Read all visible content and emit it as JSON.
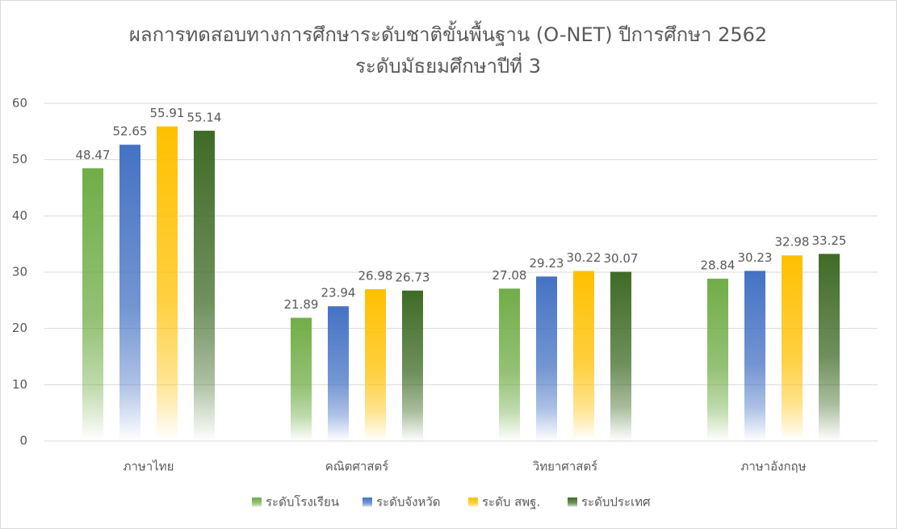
{
  "chart_data": {
    "type": "bar",
    "title": "ผลการทดสอบทางการศึกษาระดับชาติขั้นพื้นฐาน (O-NET) ปีการศึกษา 2562",
    "subtitle": "ระดับมัธยมศึกษาปีที่ 3",
    "categories": [
      "ภาษาไทย",
      "คณิตศาสตร์",
      "วิทยาศาสตร์",
      "ภาษาอังกฤษ"
    ],
    "series": [
      {
        "name": "ระดับโรงเรียน",
        "color": "#70ad47",
        "values": [
          48.47,
          21.89,
          27.08,
          28.84
        ]
      },
      {
        "name": "ระดับจังหวัด",
        "color": "#4472c4",
        "values": [
          52.65,
          23.94,
          29.23,
          30.23
        ]
      },
      {
        "name": "ระดับ สพฐ.",
        "color": "#ffc000",
        "values": [
          55.91,
          26.98,
          30.22,
          32.98
        ]
      },
      {
        "name": "ระดับประเทศ",
        "color": "#3f6b26",
        "values": [
          55.14,
          26.73,
          30.07,
          33.25
        ]
      }
    ],
    "ylim": [
      0,
      60
    ],
    "yticks": [
      0,
      10,
      20,
      30,
      40,
      50,
      60
    ],
    "grid": true,
    "legend": "bottom"
  }
}
